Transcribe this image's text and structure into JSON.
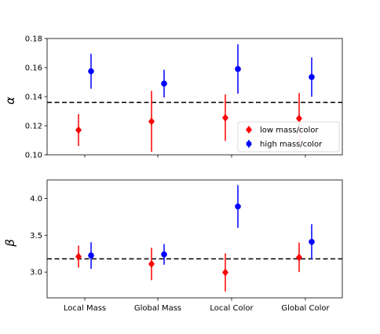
{
  "chart_data": [
    {
      "type": "scatter",
      "panel": "top",
      "ylabel": "α",
      "ylim": [
        0.1,
        0.18
      ],
      "yticks": [
        0.1,
        0.12,
        0.14,
        0.16,
        0.18
      ],
      "ytick_labels": [
        "0.10",
        "0.12",
        "0.14",
        "0.16",
        "0.18"
      ],
      "categories": [
        "Local Mass",
        "Global Mass",
        "Local Color",
        "Global Color"
      ],
      "show_xtick_labels": false,
      "reference_line": 0.136,
      "legend_position": "lower-right",
      "series": [
        {
          "name": "low mass/color",
          "color": "#ff0000",
          "marker": "diamond",
          "values": [
            0.117,
            0.123,
            0.1255,
            0.125
          ],
          "errors": [
            0.011,
            0.021,
            0.016,
            0.0175
          ]
        },
        {
          "name": "high mass/color",
          "color": "#0000ff",
          "marker": "circle",
          "values": [
            0.1575,
            0.149,
            0.159,
            0.1535
          ],
          "errors": [
            0.012,
            0.0095,
            0.017,
            0.0135
          ]
        }
      ]
    },
    {
      "type": "scatter",
      "panel": "bottom",
      "ylabel": "β",
      "ylim": [
        2.65,
        4.25
      ],
      "yticks": [
        3.0,
        3.5,
        4.0
      ],
      "ytick_labels": [
        "3.0",
        "3.5",
        "4.0"
      ],
      "categories": [
        "Local Mass",
        "Global Mass",
        "Local Color",
        "Global Color"
      ],
      "show_xtick_labels": true,
      "reference_line": 3.18,
      "series": [
        {
          "name": "low mass/color",
          "color": "#ff0000",
          "marker": "diamond",
          "values": [
            3.21,
            3.11,
            2.995,
            3.2
          ],
          "errors": [
            0.15,
            0.22,
            0.26,
            0.2
          ]
        },
        {
          "name": "high mass/color",
          "color": "#0000ff",
          "marker": "circle",
          "values": [
            3.225,
            3.24,
            3.89,
            3.41
          ],
          "errors": [
            0.18,
            0.14,
            0.29,
            0.24
          ]
        }
      ]
    }
  ]
}
